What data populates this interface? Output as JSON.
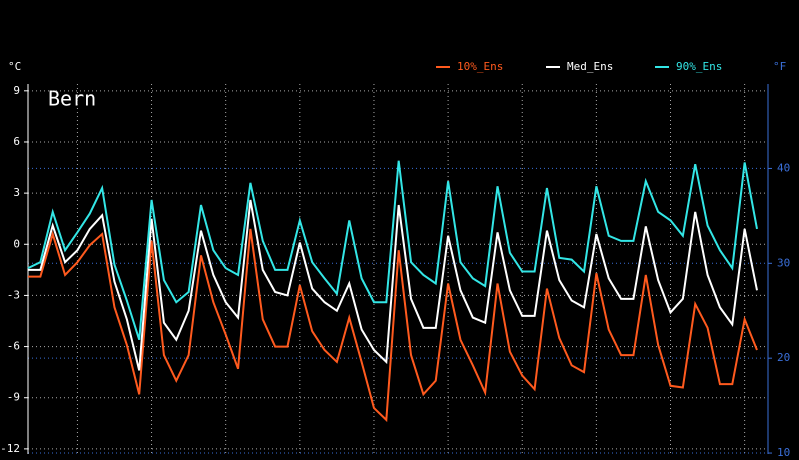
{
  "chart_data": {
    "type": "line",
    "title": "Bern",
    "y_label": "°C",
    "y2_label": "°F",
    "categories": [
      null,
      null,
      null,
      null,
      null,
      null,
      null,
      null,
      null,
      null,
      null,
      null,
      null,
      null,
      null,
      null,
      null,
      null,
      null,
      null,
      null,
      null,
      null,
      null,
      null,
      null,
      null,
      null,
      null,
      null,
      null,
      null,
      null,
      null,
      null,
      null,
      null,
      null,
      null,
      null,
      null,
      null,
      null,
      null,
      null,
      null,
      null,
      null,
      null,
      null,
      null,
      null,
      null,
      null,
      null,
      null,
      null,
      null,
      null,
      null
    ],
    "series": [
      {
        "name": "10%_Ens",
        "color": "#ff5a1e",
        "values": [
          -1.9,
          -1.9,
          0.6,
          -1.8,
          -1.05,
          -0.05,
          0.6,
          -3.7,
          -5.9,
          -8.8,
          0.2,
          -6.5,
          -8.0,
          -6.5,
          -0.65,
          -3.4,
          -5.3,
          -7.3,
          0.9,
          -4.4,
          -6.0,
          -6.0,
          -2.4,
          -5.1,
          -6.2,
          -6.9,
          -4.3,
          -6.9,
          -9.6,
          -10.3,
          -0.35,
          -6.5,
          -8.8,
          -8.0,
          -2.3,
          -5.6,
          -7.1,
          -8.7,
          -2.3,
          -6.3,
          -7.7,
          -8.5,
          -2.6,
          -5.5,
          -7.1,
          -7.5,
          -1.7,
          -5.0,
          -6.5,
          -6.5,
          -1.8,
          -5.9,
          -8.3,
          -8.4,
          -3.5,
          -4.9,
          -8.2,
          -8.2,
          -4.4,
          -6.2
        ]
      },
      {
        "name": "Med_Ens",
        "color": "#ffffff",
        "values": [
          -1.5,
          -1.5,
          1.1,
          -1.05,
          -0.35,
          0.9,
          1.7,
          -2.2,
          -4.4,
          -7.4,
          1.5,
          -4.6,
          -5.6,
          -3.9,
          0.8,
          -1.8,
          -3.4,
          -4.3,
          2.6,
          -1.5,
          -2.8,
          -3.0,
          0.1,
          -2.6,
          -3.4,
          -3.9,
          -2.3,
          -5.0,
          -6.2,
          -6.9,
          2.3,
          -3.2,
          -4.9,
          -4.9,
          0.5,
          -2.7,
          -4.3,
          -4.6,
          0.7,
          -2.7,
          -4.2,
          -4.2,
          0.8,
          -2.1,
          -3.3,
          -3.7,
          0.6,
          -2.0,
          -3.2,
          -3.2,
          1.05,
          -2.1,
          -4.0,
          -3.2,
          1.9,
          -1.8,
          -3.7,
          -4.7,
          0.9,
          -2.7
        ]
      },
      {
        "name": "90%_Ens",
        "color": "#33e6e6",
        "values": [
          -1.4,
          -1.05,
          1.9,
          -0.35,
          0.7,
          1.8,
          3.3,
          -1.2,
          -3.3,
          -5.6,
          2.6,
          -2.1,
          -3.4,
          -2.8,
          2.3,
          -0.35,
          -1.4,
          -1.8,
          3.6,
          0.2,
          -1.5,
          -1.5,
          1.4,
          -1.05,
          -2.0,
          -2.9,
          1.4,
          -2.0,
          -3.4,
          -3.4,
          4.9,
          -1.05,
          -1.8,
          -2.3,
          3.7,
          -1.05,
          -2.0,
          -2.45,
          3.4,
          -0.5,
          -1.6,
          -1.6,
          3.3,
          -0.8,
          -0.9,
          -1.6,
          3.4,
          0.5,
          0.2,
          0.2,
          3.7,
          1.9,
          1.4,
          0.5,
          4.7,
          1.1,
          -0.35,
          -1.4,
          4.8,
          0.9
        ]
      }
    ],
    "ylim": [
      -12.3,
      9.4
    ],
    "yticks": [
      -12,
      -9,
      -6,
      -3,
      0,
      3,
      6,
      9
    ],
    "y2lim": [
      9.9,
      48.9
    ],
    "y2ticks": [
      10,
      20,
      30,
      40
    ],
    "y2_color": "#3a6fd8",
    "grid": true,
    "legend": "top"
  }
}
